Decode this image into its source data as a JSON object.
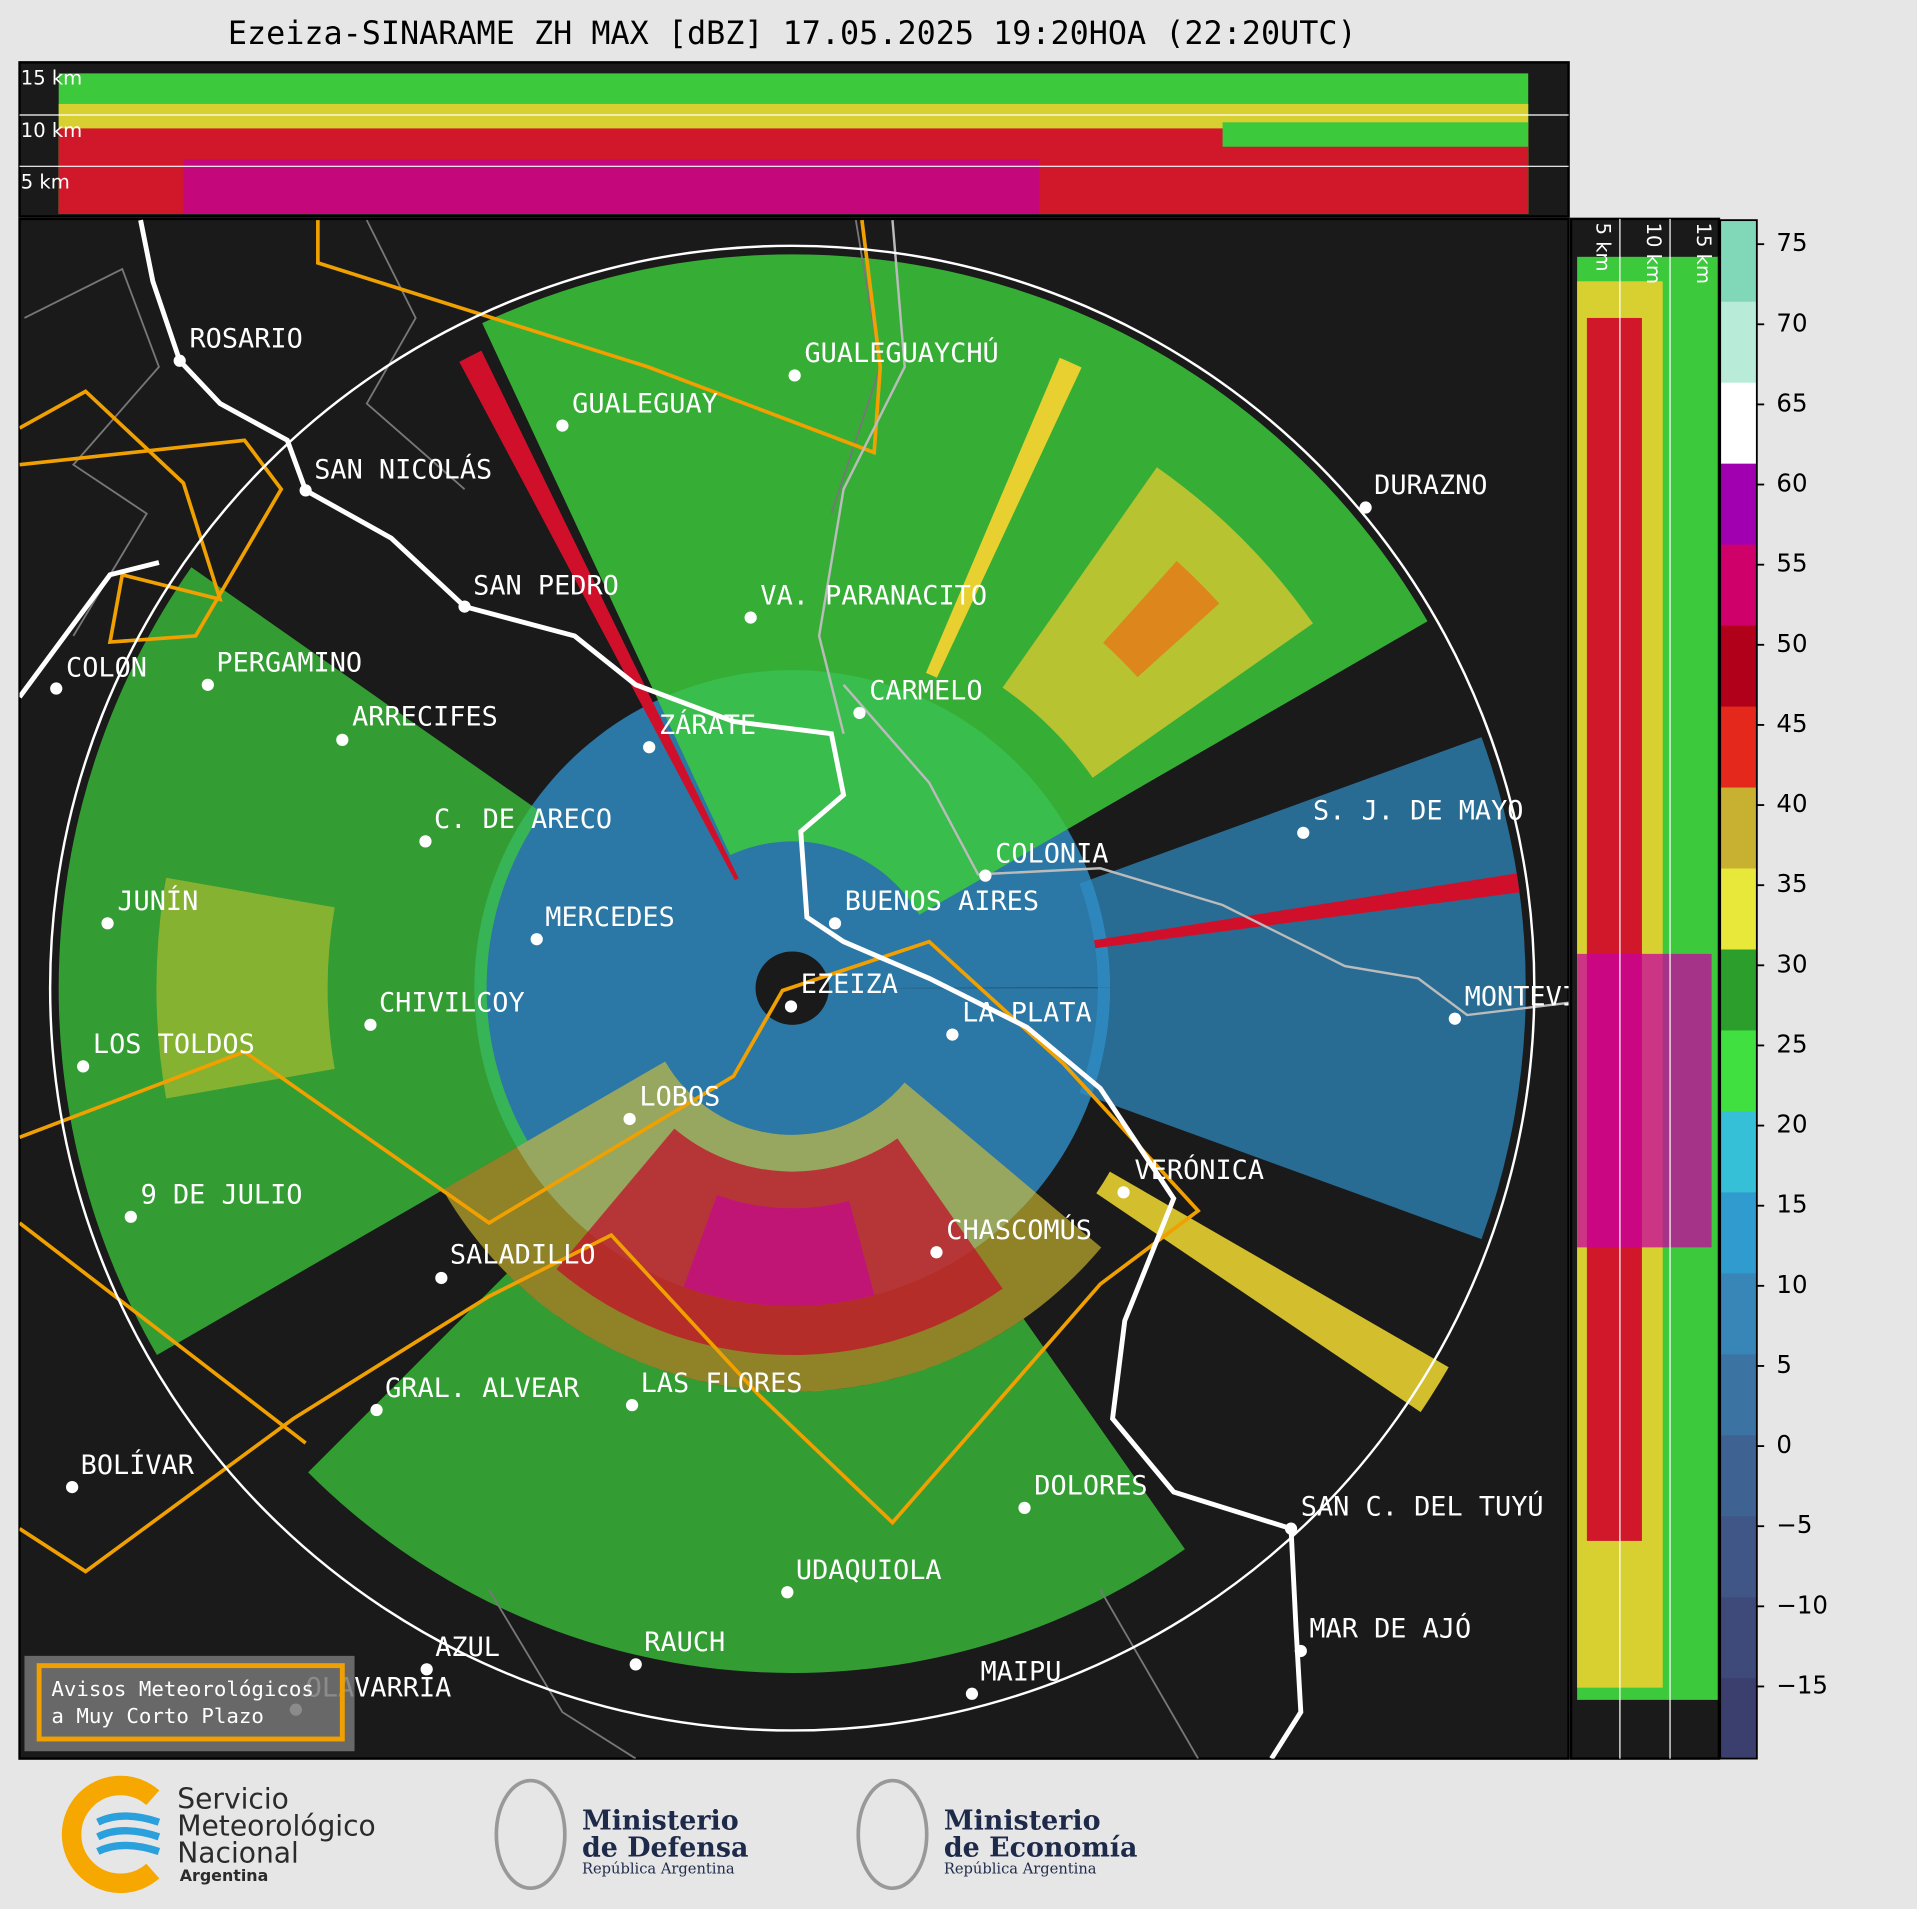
{
  "title": "Ezeiza-SINARAME ZH MAX [dBZ] 17.05.2025 19:20HOA (22:20UTC)",
  "top_panel": {
    "labels": [
      "15 km",
      "10 km",
      "5 km"
    ]
  },
  "side_panel": {
    "labels": [
      "5 km",
      "10 km",
      "15 km"
    ]
  },
  "map": {
    "cities": [
      "ROSARIO",
      "GUALEGUAY",
      "GUALEGUAYCHÚ",
      "SAN NICOLÁS",
      "DURAZNO",
      "SAN PEDRO",
      "VA. PARANACITO",
      "COLON",
      "PERGAMINO",
      "CARMELO",
      "ARRECIFES",
      "ZÁRATE",
      "S. J. DE MAYO",
      "C. DE ARECO",
      "COLONIA",
      "JUNÍN",
      "BUENOS AIRES",
      "MERCEDES",
      "MONTEVIDEO",
      "EZEIZA",
      "LA PLATA",
      "CHIVILCOY",
      "LOS TOLDOS",
      "LOBOS",
      "VERÓNICA",
      "9 DE JULIO",
      "CHASCOMÚS",
      "SALADILLO",
      "GRAL. ALVEAR",
      "LAS FLORES",
      "BOLÍVAR",
      "DOLORES",
      "SAN C. DEL TUYÚ",
      "UDAQUIOLA",
      "MAR DE AJÓ",
      "AZUL",
      "RAUCH",
      "OLAVARRÍA",
      "MAIPU"
    ],
    "legend": [
      "Avisos Meteorológicos",
      "a Muy Corto Plazo"
    ]
  },
  "colorbar": {
    "lim": [
      -19.5,
      76.5
    ],
    "ticks": [
      {
        "value": -15,
        "label": "−15"
      },
      {
        "value": -10,
        "label": "−10"
      },
      {
        "value": -5,
        "label": "−5"
      },
      0,
      5,
      10,
      15,
      20,
      25,
      30,
      35,
      40,
      45,
      50,
      55,
      60,
      65,
      70,
      75
    ],
    "colors": [
      "#3a3f6e",
      "#3d4a7a",
      "#3f5687",
      "#3e6393",
      "#3b74a3",
      "#3886b8",
      "#2f9bcf",
      "#35c0d8",
      "#3fe03f",
      "#2b9e2b",
      "#e8e83a",
      "#c8b030",
      "#e4281c",
      "#b0001a",
      "#d0006a",
      "#a000b0",
      "#ffffff",
      "#b8ecd8",
      "#80d8b8"
    ]
  },
  "footer": {
    "smn": [
      "Servicio",
      "Meteorológico",
      "Nacional",
      "Argentina"
    ],
    "defensa": [
      "Ministerio",
      "de Defensa",
      "República Argentina"
    ],
    "economia": [
      "Ministerio",
      "de Economía",
      "República Argentina"
    ]
  }
}
